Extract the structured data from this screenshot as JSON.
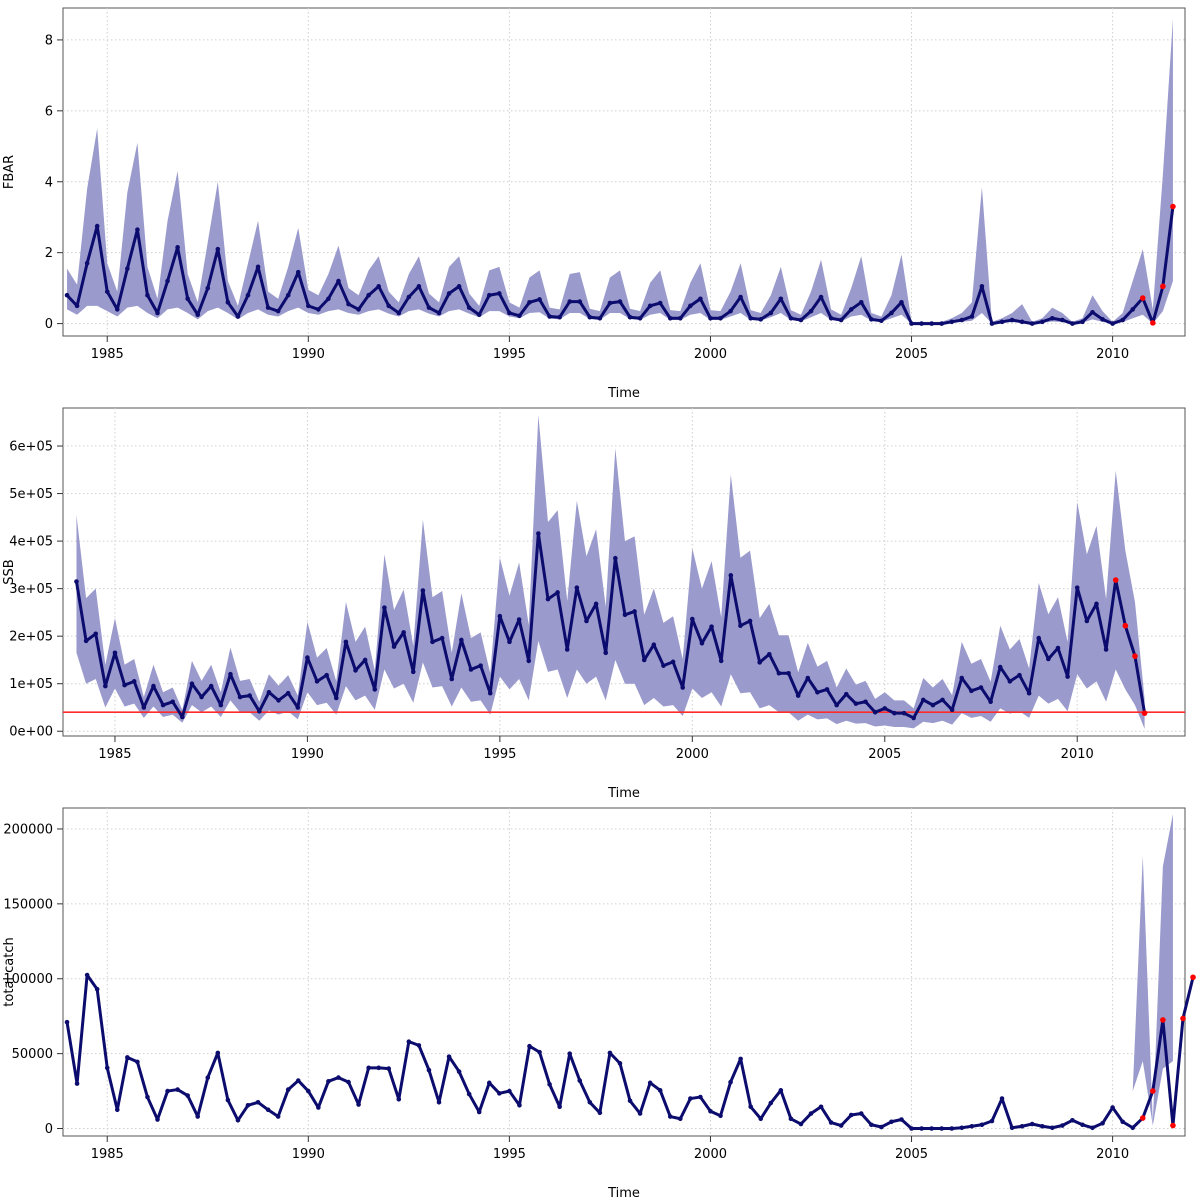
{
  "chart_data": [
    {
      "type": "line",
      "panel": "top",
      "xlabel": "Time",
      "ylabel": "FBAR",
      "xlim": [
        1983.9,
        2011.8
      ],
      "ylim": [
        -0.35,
        8.9
      ],
      "x_ticks": [
        1985,
        1990,
        1995,
        2000,
        2005,
        2010
      ],
      "x_tick_labels": [
        "1985",
        "1990",
        "1995",
        "2000",
        "2005",
        "2010"
      ],
      "y_ticks": [
        0,
        2,
        4,
        6,
        8
      ],
      "y_tick_labels": [
        "0",
        "2",
        "4",
        "6",
        "8"
      ],
      "grid": true,
      "band_color": "#9a9acd",
      "line_color": "#0c0c6e",
      "projection_color": "#ff0000",
      "series": [
        {
          "x_start": 1984.0,
          "x_step": 0.25,
          "values": [
            0.8,
            0.5,
            1.7,
            2.75,
            0.9,
            0.4,
            1.55,
            2.65,
            0.8,
            0.3,
            1.2,
            2.15,
            0.7,
            0.25,
            1.0,
            2.1,
            0.6,
            0.2,
            0.8,
            1.6,
            0.45,
            0.35,
            0.8,
            1.45,
            0.5,
            0.4,
            0.7,
            1.2,
            0.55,
            0.4,
            0.8,
            1.05,
            0.5,
            0.3,
            0.75,
            1.05,
            0.45,
            0.3,
            0.85,
            1.05,
            0.45,
            0.25,
            0.8,
            0.85,
            0.3,
            0.22,
            0.6,
            0.68,
            0.2,
            0.18,
            0.62,
            0.62,
            0.18,
            0.15,
            0.58,
            0.62,
            0.18,
            0.15,
            0.5,
            0.58,
            0.15,
            0.15,
            0.5,
            0.7,
            0.15,
            0.15,
            0.35,
            0.75,
            0.15,
            0.12,
            0.3,
            0.7,
            0.15,
            0.1,
            0.35,
            0.75,
            0.15,
            0.1,
            0.4,
            0.6,
            0.12,
            0.08,
            0.3,
            0.6,
            0.0,
            0.0,
            0.0,
            0.0,
            0.05,
            0.1,
            0.2,
            1.05,
            0.0,
            0.05,
            0.1,
            0.05,
            0.0,
            0.05,
            0.15,
            0.1,
            0.0,
            0.05,
            0.32,
            0.12,
            0.0,
            0.1,
            0.4,
            0.72,
            0.02,
            1.05,
            3.3
          ],
          "lower": [
            0.4,
            0.25,
            0.5,
            0.5,
            0.35,
            0.2,
            0.45,
            0.5,
            0.3,
            0.15,
            0.4,
            0.45,
            0.3,
            0.12,
            0.35,
            0.45,
            0.3,
            0.12,
            0.3,
            0.4,
            0.25,
            0.2,
            0.35,
            0.45,
            0.3,
            0.25,
            0.35,
            0.4,
            0.3,
            0.25,
            0.35,
            0.4,
            0.28,
            0.2,
            0.35,
            0.4,
            0.28,
            0.2,
            0.35,
            0.4,
            0.28,
            0.18,
            0.35,
            0.35,
            0.2,
            0.15,
            0.3,
            0.32,
            0.14,
            0.12,
            0.3,
            0.3,
            0.13,
            0.1,
            0.3,
            0.3,
            0.13,
            0.1,
            0.25,
            0.3,
            0.1,
            0.1,
            0.25,
            0.3,
            0.1,
            0.1,
            0.2,
            0.3,
            0.1,
            0.08,
            0.18,
            0.3,
            0.1,
            0.06,
            0.18,
            0.3,
            0.1,
            0.06,
            0.2,
            0.25,
            0.08,
            0.05,
            0.15,
            0.25,
            0.0,
            0.0,
            0.0,
            0.0,
            0.02,
            0.05,
            0.08,
            0.3,
            0.0,
            0.02,
            0.04,
            0.02,
            0.0,
            0.02,
            0.06,
            0.04,
            0.0,
            0.02,
            0.12,
            0.05,
            0.0,
            0.04,
            0.15,
            0.25,
            0.0,
            0.35,
            1.2
          ],
          "upper": [
            1.55,
            1.1,
            3.8,
            5.5,
            1.7,
            0.9,
            3.7,
            5.1,
            1.6,
            0.7,
            2.9,
            4.3,
            1.4,
            0.6,
            2.3,
            4.0,
            1.2,
            0.5,
            1.7,
            2.9,
            0.9,
            0.7,
            1.6,
            2.7,
            0.95,
            0.8,
            1.4,
            2.2,
            1.0,
            0.8,
            1.5,
            1.9,
            0.9,
            0.6,
            1.4,
            1.9,
            0.85,
            0.6,
            1.6,
            1.9,
            0.85,
            0.5,
            1.5,
            1.6,
            0.6,
            0.45,
            1.3,
            1.5,
            0.45,
            0.4,
            1.4,
            1.45,
            0.42,
            0.35,
            1.3,
            1.5,
            0.42,
            0.35,
            1.15,
            1.5,
            0.38,
            0.35,
            1.15,
            1.7,
            0.38,
            0.35,
            0.9,
            1.7,
            0.38,
            0.3,
            0.8,
            1.6,
            0.38,
            0.25,
            0.9,
            1.8,
            0.4,
            0.25,
            1.0,
            1.9,
            0.3,
            0.2,
            0.8,
            1.95,
            0.05,
            0.05,
            0.05,
            0.05,
            0.15,
            0.3,
            0.6,
            3.85,
            0.05,
            0.15,
            0.3,
            0.55,
            0.05,
            0.15,
            0.45,
            0.3,
            0.05,
            0.15,
            0.8,
            0.35,
            0.05,
            0.3,
            1.2,
            2.1,
            0.4,
            4.2,
            8.6
          ]
        }
      ],
      "projection_start_index": 107
    },
    {
      "type": "line",
      "panel": "middle",
      "xlabel": "Time",
      "ylabel": "SSB",
      "xlim": [
        1983.65,
        2012.8
      ],
      "ylim": [
        -10000,
        680000
      ],
      "x_ticks": [
        1985,
        1990,
        1995,
        2000,
        2005,
        2010
      ],
      "x_tick_labels": [
        "1985",
        "1990",
        "1995",
        "2000",
        "2005",
        "2010"
      ],
      "y_ticks": [
        0,
        100000,
        200000,
        300000,
        400000,
        500000,
        600000
      ],
      "y_tick_labels": [
        "0e+00",
        "1e+05",
        "2e+05",
        "3e+05",
        "4e+05",
        "5e+05",
        "6e+05"
      ],
      "grid": true,
      "reference_line": {
        "y": 40000,
        "color": "#ff2a2a"
      },
      "band_color": "#9a9acd",
      "line_color": "#0c0c6e",
      "projection_color": "#ff0000",
      "series": [
        {
          "x_start": 1984.0,
          "x_step": 0.25,
          "values": [
            315000,
            190000,
            205000,
            95000,
            165000,
            97000,
            105000,
            50000,
            95000,
            55000,
            62000,
            30000,
            100000,
            72000,
            95000,
            55000,
            120000,
            72000,
            75000,
            42000,
            82000,
            65000,
            80000,
            50000,
            155000,
            105000,
            118000,
            70000,
            188000,
            128000,
            150000,
            88000,
            260000,
            178000,
            208000,
            125000,
            296000,
            188000,
            196000,
            110000,
            192000,
            130000,
            138000,
            80000,
            242000,
            188000,
            235000,
            148000,
            416000,
            278000,
            292000,
            172000,
            302000,
            232000,
            268000,
            165000,
            364000,
            245000,
            252000,
            150000,
            182000,
            138000,
            146000,
            92000,
            236000,
            185000,
            220000,
            148000,
            328000,
            222000,
            232000,
            145000,
            162000,
            122000,
            122000,
            75000,
            112000,
            82000,
            88000,
            55000,
            78000,
            58000,
            62000,
            40000,
            48000,
            38000,
            38000,
            28000,
            66000,
            55000,
            66000,
            45000,
            112000,
            85000,
            92000,
            62000,
            135000,
            105000,
            118000,
            80000,
            196000,
            152000,
            175000,
            115000,
            302000,
            232000,
            268000,
            172000,
            318000,
            222000,
            158000,
            38000
          ],
          "lower": [
            165000,
            100000,
            110000,
            50000,
            90000,
            52000,
            58000,
            28000,
            52000,
            30000,
            35000,
            18000,
            55000,
            40000,
            52000,
            30000,
            65000,
            40000,
            40000,
            22000,
            44000,
            35000,
            42000,
            25000,
            82000,
            55000,
            60000,
            35000,
            95000,
            65000,
            75000,
            45000,
            130000,
            90000,
            100000,
            60000,
            145000,
            92000,
            95000,
            52000,
            92000,
            62000,
            65000,
            35000,
            115000,
            88000,
            110000,
            65000,
            190000,
            125000,
            130000,
            70000,
            130000,
            100000,
            115000,
            65000,
            150000,
            100000,
            100000,
            55000,
            70000,
            52000,
            55000,
            32000,
            90000,
            70000,
            82000,
            52000,
            120000,
            80000,
            82000,
            48000,
            55000,
            40000,
            40000,
            22000,
            35000,
            25000,
            27000,
            15000,
            22000,
            16000,
            17000,
            10000,
            12000,
            9000,
            9000,
            6000,
            20000,
            17000,
            22000,
            14000,
            38000,
            28000,
            32000,
            20000,
            48000,
            37000,
            42000,
            28000,
            75000,
            58000,
            68000,
            42000,
            120000,
            90000,
            105000,
            62000,
            130000,
            88000,
            55000,
            5000
          ],
          "upper": [
            455000,
            280000,
            300000,
            140000,
            238000,
            140000,
            152000,
            72000,
            140000,
            82000,
            92000,
            45000,
            148000,
            106000,
            140000,
            82000,
            176000,
            106000,
            110000,
            62000,
            120000,
            96000,
            118000,
            75000,
            230000,
            155000,
            175000,
            105000,
            272000,
            188000,
            220000,
            128000,
            372000,
            255000,
            298000,
            180000,
            445000,
            282000,
            295000,
            165000,
            290000,
            196000,
            208000,
            122000,
            365000,
            285000,
            355000,
            224000,
            665000,
            440000,
            465000,
            274000,
            485000,
            368000,
            425000,
            262000,
            595000,
            400000,
            410000,
            245000,
            300000,
            228000,
            242000,
            152000,
            385000,
            300000,
            358000,
            240000,
            540000,
            365000,
            380000,
            238000,
            268000,
            202000,
            202000,
            124000,
            186000,
            136000,
            148000,
            92000,
            132000,
            98000,
            106000,
            68000,
            82000,
            65000,
            65000,
            48000,
            112000,
            92000,
            110000,
            76000,
            188000,
            142000,
            152000,
            104000,
            222000,
            172000,
            194000,
            132000,
            312000,
            246000,
            282000,
            188000,
            482000,
            372000,
            432000,
            278000,
            548000,
            380000,
            272000,
            68000
          ]
        }
      ],
      "projection_start_index": 108
    },
    {
      "type": "line",
      "panel": "bottom",
      "xlabel": "Time",
      "ylabel": "total catch",
      "xlim": [
        1983.9,
        2011.8
      ],
      "ylim": [
        -5000,
        214000
      ],
      "x_ticks": [
        1985,
        1990,
        1995,
        2000,
        2005,
        2010
      ],
      "x_tick_labels": [
        "1985",
        "1990",
        "1995",
        "2000",
        "2005",
        "2010"
      ],
      "y_ticks": [
        0,
        50000,
        100000,
        150000,
        200000
      ],
      "y_tick_labels": [
        "0",
        "50000",
        "100000",
        "150000",
        "200000"
      ],
      "grid": true,
      "band_color": "#9a9acd",
      "line_color": "#0c0c6e",
      "projection_color": "#ff0000",
      "series": [
        {
          "x_start": 1984.0,
          "x_step": 0.25,
          "values": [
            71000,
            30000,
            102500,
            93000,
            40500,
            12500,
            47500,
            44500,
            21000,
            6000,
            25000,
            26000,
            22000,
            8000,
            34000,
            50500,
            19000,
            5500,
            15500,
            17500,
            12500,
            8000,
            26000,
            32000,
            25000,
            14000,
            31500,
            34000,
            31000,
            16000,
            40500,
            40500,
            40000,
            19500,
            58000,
            55500,
            39000,
            17500,
            48000,
            38000,
            23000,
            11000,
            30500,
            23500,
            25000,
            15500,
            55000,
            51000,
            29500,
            14500,
            50000,
            32000,
            17500,
            10500,
            50500,
            43500,
            18500,
            10000,
            30500,
            25500,
            8000,
            6500,
            20000,
            21000,
            11500,
            8500,
            31000,
            46500,
            14500,
            6500,
            17000,
            25500,
            6500,
            3000,
            10000,
            14500,
            4000,
            2000,
            9000,
            10000,
            2500,
            1000,
            4500,
            6000,
            0,
            0,
            0,
            0,
            0,
            500,
            1500,
            2500,
            5000,
            20000,
            500,
            1500,
            3000,
            1500,
            500,
            2000,
            5500,
            2500,
            500,
            3500,
            14000,
            4500,
            500,
            7000,
            25000,
            72500,
            2000,
            73500,
            101000
          ],
          "lower": [],
          "upper": []
        }
      ],
      "band_from_index": 106,
      "band_lower": [
        25000,
        45000,
        2000,
        40000,
        45000
      ],
      "band_upper": [
        25000,
        182000,
        4000,
        175000,
        210000
      ],
      "projection_start_index": 107
    }
  ]
}
